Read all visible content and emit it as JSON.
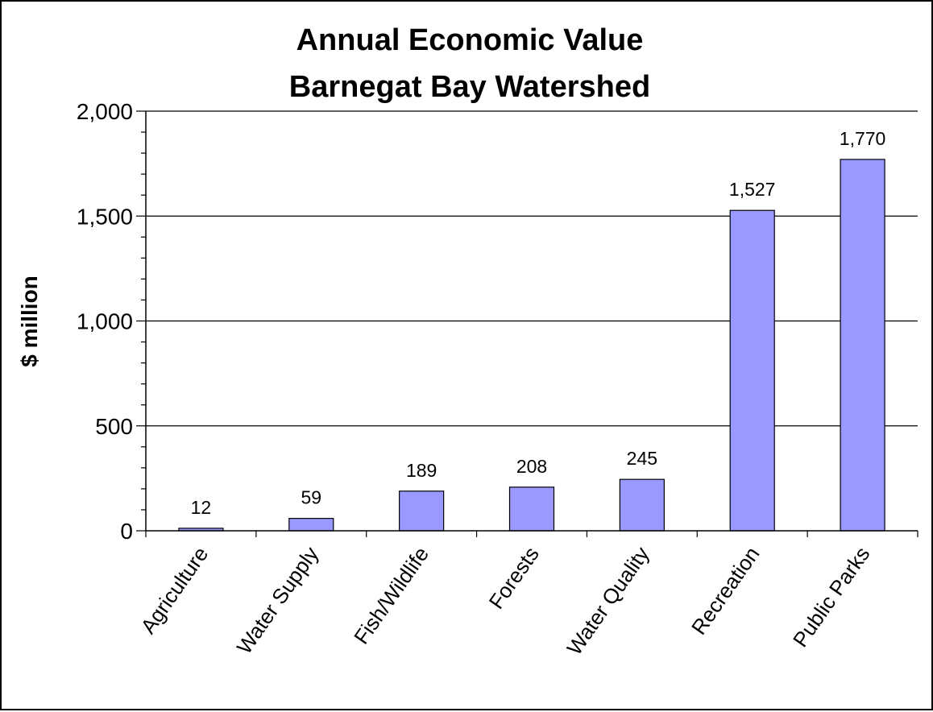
{
  "chart_data": {
    "type": "bar",
    "title": [
      "Annual Economic Value",
      "Barnegat Bay Watershed"
    ],
    "xlabel": "",
    "ylabel": "$ million",
    "ylim": [
      0,
      2000
    ],
    "yticks": [
      0,
      500,
      1000,
      1500,
      2000
    ],
    "ytick_labels": [
      "0",
      "500",
      "1,000",
      "1,500",
      "2,000"
    ],
    "grid": true,
    "legend": "none",
    "bar_color": "#9999ff",
    "categories": [
      "Agriculture",
      "Water Supply",
      "Fish/Wildlife",
      "Forests",
      "Water Quality",
      "Recreation",
      "Public Parks"
    ],
    "values": [
      12,
      59,
      189,
      208,
      245,
      1527,
      1770
    ],
    "value_labels": [
      "12",
      "59",
      "189",
      "208",
      "245",
      "1,527",
      "1,770"
    ]
  }
}
